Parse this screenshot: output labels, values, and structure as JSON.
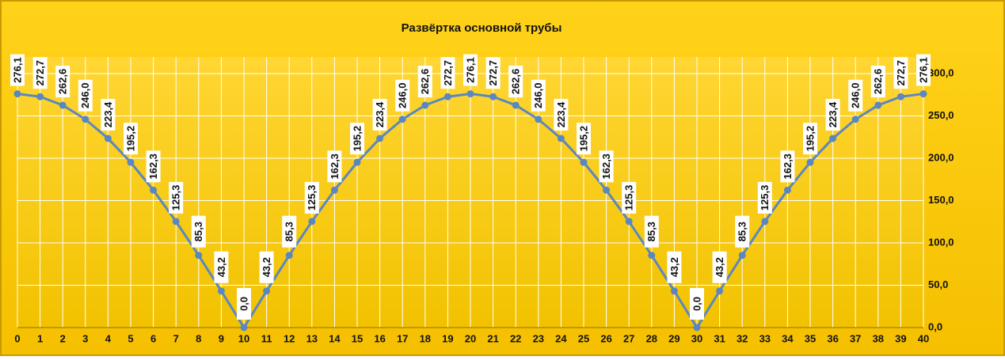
{
  "chart_data": {
    "type": "line",
    "title": "Развёртка основной трубы",
    "x": [
      0,
      1,
      2,
      3,
      4,
      5,
      6,
      7,
      8,
      9,
      10,
      11,
      12,
      13,
      14,
      15,
      16,
      17,
      18,
      19,
      20,
      21,
      22,
      23,
      24,
      25,
      26,
      27,
      28,
      29,
      30,
      31,
      32,
      33,
      34,
      35,
      36,
      37,
      38,
      39,
      40
    ],
    "xlim": [
      0,
      40
    ],
    "xticks": [
      0,
      1,
      2,
      3,
      4,
      5,
      6,
      7,
      8,
      9,
      10,
      11,
      12,
      13,
      14,
      15,
      16,
      17,
      18,
      19,
      20,
      21,
      22,
      23,
      24,
      25,
      26,
      27,
      28,
      29,
      30,
      31,
      32,
      33,
      34,
      35,
      36,
      37,
      38,
      39,
      40
    ],
    "ylim": [
      0,
      300
    ],
    "yticks": [
      {
        "value": 0,
        "label": "0,0"
      },
      {
        "value": 50,
        "label": "50,0"
      },
      {
        "value": 100,
        "label": "100,0"
      },
      {
        "value": 150,
        "label": "150,0"
      },
      {
        "value": 200,
        "label": "200,0"
      },
      {
        "value": 250,
        "label": "250,0"
      },
      {
        "value": 300,
        "label": "300,0"
      }
    ],
    "grid": true,
    "color": "#5b87c0",
    "values": [
      276.1,
      272.7,
      262.6,
      246.0,
      223.4,
      195.2,
      162.3,
      125.3,
      85.3,
      43.2,
      0.0,
      43.2,
      85.3,
      125.3,
      162.3,
      195.2,
      223.4,
      246.0,
      262.6,
      272.7,
      276.1,
      272.7,
      262.6,
      246.0,
      223.4,
      195.2,
      162.3,
      125.3,
      85.3,
      43.2,
      0.0,
      43.2,
      85.3,
      125.3,
      162.3,
      195.2,
      223.4,
      246.0,
      262.6,
      272.7,
      276.1
    ],
    "value_labels": [
      "276,1",
      "272,7",
      "262,6",
      "246,0",
      "223,4",
      "195,2",
      "162,3",
      "125,3",
      "85,3",
      "43,2",
      "0,0",
      "43,2",
      "85,3",
      "125,3",
      "162,3",
      "195,2",
      "223,4",
      "246,0",
      "262,6",
      "272,7",
      "276,1",
      "272,7",
      "262,6",
      "246,0",
      "223,4",
      "195,2",
      "162,3",
      "125,3",
      "85,3",
      "43,2",
      "0,0",
      "43,2",
      "85,3",
      "125,3",
      "162,3",
      "195,2",
      "223,4",
      "246,0",
      "262,6",
      "272,7",
      "276,1"
    ]
  }
}
